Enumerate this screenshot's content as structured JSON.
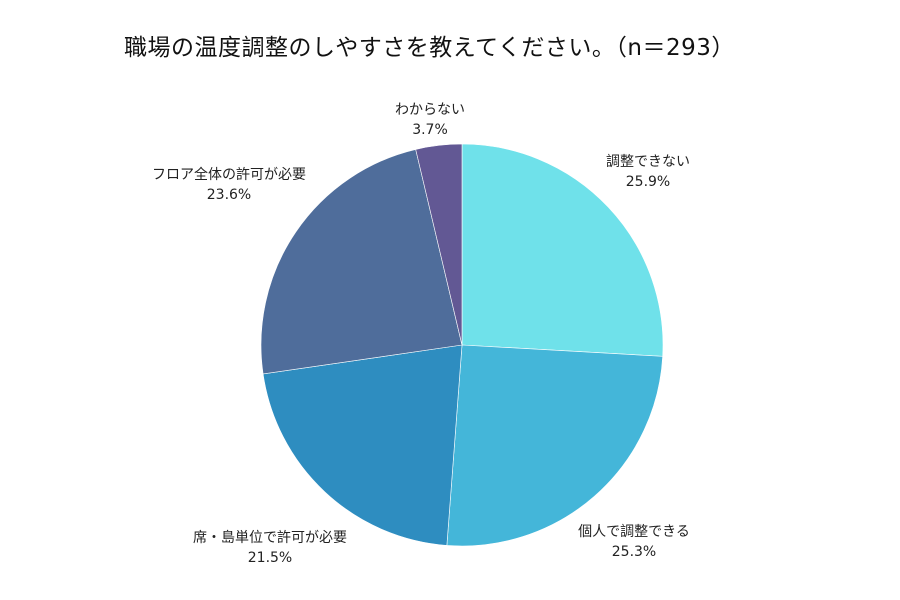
{
  "chart_data": {
    "type": "pie",
    "title": "職場の温度調整のしやすさを教えてください。(n=293)",
    "n": 293,
    "start_angle_deg": 0,
    "direction": "clockwise",
    "categories": [
      "調整できない",
      "個人で調整できる",
      "席・島単位で許可が必要",
      "フロア全体の許可が必要",
      "わからない"
    ],
    "values": [
      25.9,
      25.3,
      21.5,
      23.6,
      3.7
    ],
    "unit": "%",
    "colors": [
      "#6fe1ea",
      "#44b6d9",
      "#2e8dc0",
      "#4f6d9b",
      "#625894"
    ],
    "legend": "none (labels outside slices)"
  },
  "title": "職場の温度調整のしやすさを教えてください。（n＝293）",
  "slices": [
    {
      "label": "調整できない",
      "pct": "25.9%"
    },
    {
      "label": "個人で調整できる",
      "pct": "25.3%"
    },
    {
      "label": "席・島単位で許可が必要",
      "pct": "21.5%"
    },
    {
      "label": "フロア全体の許可が必要",
      "pct": "23.6%"
    },
    {
      "label": "わからない",
      "pct": "3.7%"
    }
  ]
}
